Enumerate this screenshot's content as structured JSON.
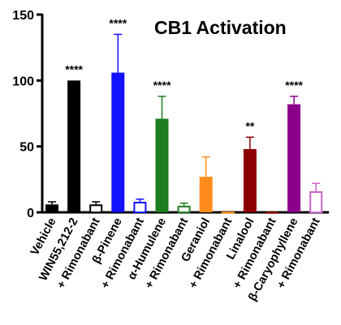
{
  "chart_data": {
    "type": "bar",
    "title": "CB1 Activation",
    "xlabel": "",
    "ylabel": "",
    "ylim": [
      0,
      150
    ],
    "yticks": [
      0,
      50,
      100,
      150
    ],
    "grid": false,
    "categories": [
      "Vehicle",
      "WIN55,212-2",
      "+ Rimonabant",
      "β-Pinene",
      "+ Rimonabant",
      "α-Humulene",
      "+ Rimonabant",
      "Geraniol",
      "+ Rimonabant",
      "Linalool",
      "+ Rimonabant",
      "β-Caryophyllene",
      "+ Rimonabant"
    ],
    "values": [
      6,
      100,
      6,
      106,
      8,
      71,
      5,
      27,
      0,
      48,
      0,
      82,
      16
    ],
    "errors": [
      2,
      0,
      2,
      29,
      2,
      17,
      2,
      15,
      0,
      9,
      0,
      6,
      6
    ],
    "significance": [
      "",
      "****",
      "",
      "****",
      "",
      "****",
      "",
      "",
      "",
      "**",
      "",
      "****",
      ""
    ],
    "colors": [
      "#000000",
      "#000000",
      "#000000",
      "#1212ff",
      "#1212ff",
      "#1e7d1e",
      "#1e7d1e",
      "#ff8c1a",
      "#ff8c1a",
      "#8b0000",
      "#8b0000",
      "#8b008b",
      "#cc66cc"
    ],
    "filled": [
      true,
      true,
      false,
      true,
      false,
      true,
      false,
      true,
      false,
      true,
      false,
      true,
      false
    ]
  }
}
